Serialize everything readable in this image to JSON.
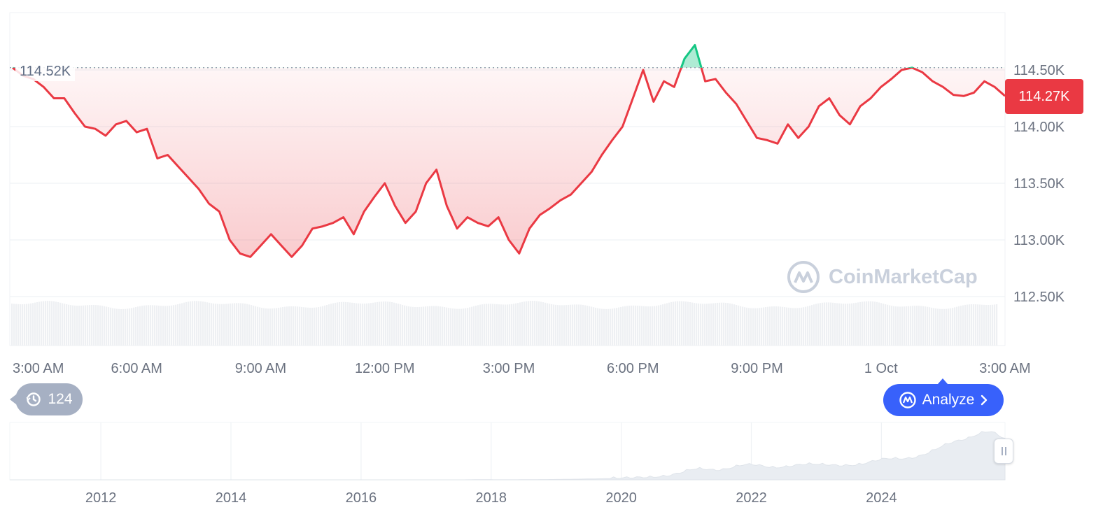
{
  "chart_data": {
    "type": "line",
    "title": "",
    "current_price_label": "114.27K",
    "high_marker_label": "114.52K",
    "reference_value": 114.52,
    "y_unit": "K",
    "ylim": [
      112.1,
      115.1
    ],
    "yticks": [
      {
        "value": 114.5,
        "label": "114.50K"
      },
      {
        "value": 114.0,
        "label": "114.00K"
      },
      {
        "value": 113.5,
        "label": "113.50K"
      },
      {
        "value": 113.0,
        "label": "113.00K"
      },
      {
        "value": 112.5,
        "label": "112.50K"
      }
    ],
    "xticks": [
      "3:00 AM",
      "6:00 AM",
      "9:00 AM",
      "12:00 PM",
      "3:00 PM",
      "6:00 PM",
      "9:00 PM",
      "1 Oct",
      "3:00 AM"
    ],
    "xtick_hours": [
      0,
      3,
      6,
      9,
      12,
      15,
      18,
      21,
      24
    ],
    "x_range_hours": [
      0,
      24
    ],
    "series": [
      {
        "hours": [
          0.0,
          0.25,
          0.5,
          0.75,
          1.0,
          1.25,
          1.5,
          1.75,
          2.0,
          2.25,
          2.5,
          2.75,
          3.0,
          3.25,
          3.5,
          3.75,
          4.0,
          4.25,
          4.5,
          4.75,
          5.0,
          5.25,
          5.5,
          5.75,
          6.0,
          6.25,
          6.5,
          6.75,
          7.0,
          7.25,
          7.5,
          7.75,
          8.0,
          8.25,
          8.5,
          8.75,
          9.0,
          9.25,
          9.5,
          9.75,
          10.0,
          10.25,
          10.5,
          10.75,
          11.0,
          11.25,
          11.5,
          11.75,
          12.0,
          12.25,
          12.5,
          12.75,
          13.0,
          13.25,
          13.5,
          13.75,
          14.0,
          14.25,
          14.5,
          14.75,
          15.0,
          15.25,
          15.5,
          15.75,
          16.0,
          16.25,
          16.5,
          16.75,
          17.0,
          17.25,
          17.5,
          17.75,
          18.0,
          18.25,
          18.5,
          18.75,
          19.0,
          19.25,
          19.5,
          19.75,
          20.0,
          20.25,
          20.5,
          20.75,
          21.0,
          21.25,
          21.5,
          21.75,
          22.0,
          22.25,
          22.5,
          22.75,
          23.0,
          23.25,
          23.5,
          23.75,
          24.0
        ],
        "values": [
          114.52,
          114.45,
          114.42,
          114.35,
          114.25,
          114.25,
          114.12,
          114.0,
          113.98,
          113.92,
          114.02,
          114.05,
          113.95,
          113.98,
          113.72,
          113.75,
          113.65,
          113.55,
          113.45,
          113.32,
          113.25,
          113.0,
          112.88,
          112.85,
          112.95,
          113.05,
          112.95,
          112.85,
          112.95,
          113.1,
          113.12,
          113.15,
          113.2,
          113.05,
          113.25,
          113.38,
          113.5,
          113.3,
          113.15,
          113.25,
          113.5,
          113.62,
          113.3,
          113.1,
          113.2,
          113.15,
          113.12,
          113.2,
          113.0,
          112.88,
          113.1,
          113.22,
          113.28,
          113.35,
          113.4,
          113.5,
          113.6,
          113.75,
          113.88,
          114.0,
          114.25,
          114.5,
          114.22,
          114.4,
          114.35,
          114.6,
          114.72,
          114.4,
          114.42,
          114.3,
          114.2,
          114.05,
          113.9,
          113.88,
          113.85,
          114.02,
          113.9,
          114.0,
          114.18,
          114.25,
          114.1,
          114.02,
          114.18,
          114.25,
          114.35,
          114.42,
          114.5,
          114.52,
          114.48,
          114.4,
          114.35,
          114.28,
          114.27,
          114.3,
          114.4,
          114.35,
          114.27
        ]
      }
    ],
    "range_selector": {
      "xticks": [
        "2012",
        "2014",
        "2016",
        "2018",
        "2020",
        "2022",
        "2024"
      ],
      "tick_years": [
        2012,
        2014,
        2016,
        2018,
        2020,
        2022,
        2024
      ],
      "x_range_years": [
        2010.6,
        2025.9
      ]
    },
    "colors": {
      "up": "#16c784",
      "down": "#ea3943",
      "volume": "#eef0f3",
      "grid": "#eff2f5",
      "accent": "#3861fb"
    }
  },
  "controls": {
    "history_count": "124",
    "history_icon": "history-clock-icon",
    "analyze_label": "Analyze",
    "analyze_icon": "analyze-logo-icon",
    "watermark": "CoinMarketCap"
  }
}
